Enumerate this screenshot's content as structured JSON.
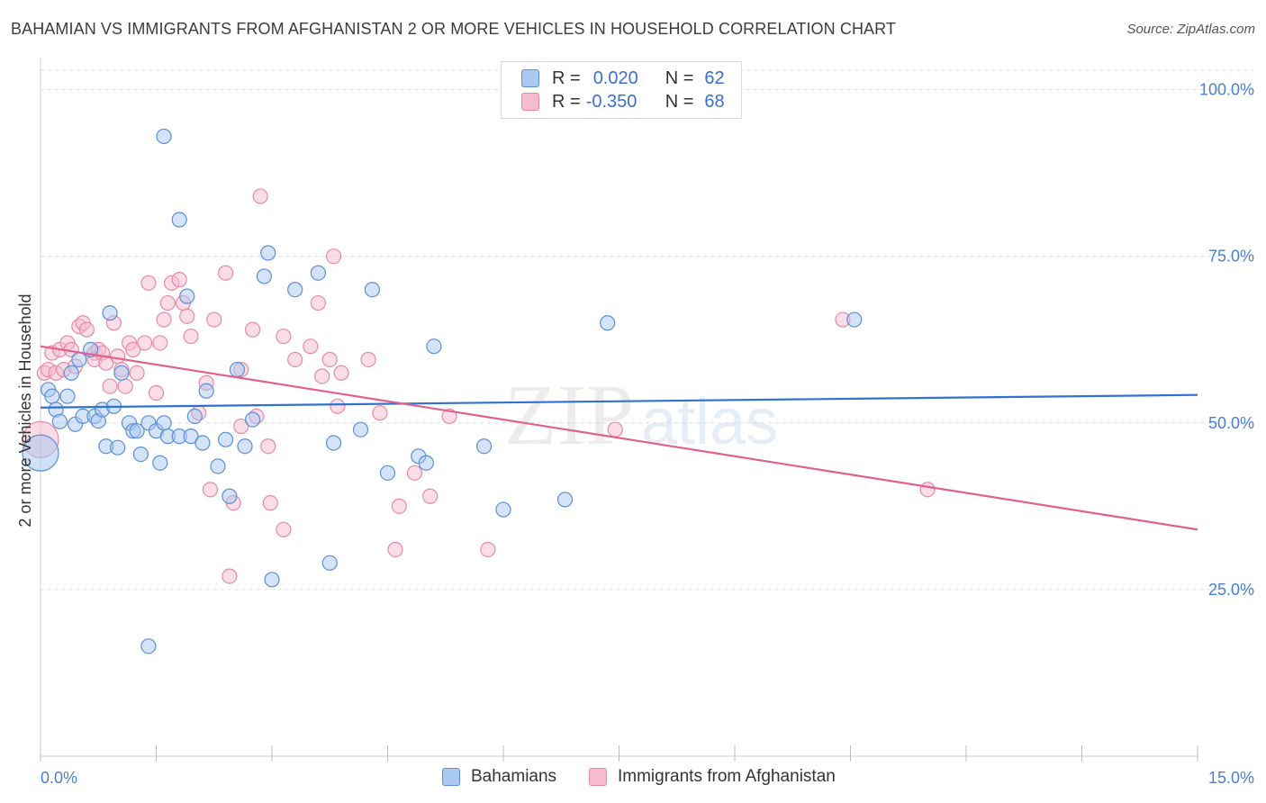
{
  "header": {
    "title": "BAHAMIAN VS IMMIGRANTS FROM AFGHANISTAN 2 OR MORE VEHICLES IN HOUSEHOLD CORRELATION CHART",
    "source": "Source: ZipAtlas.com"
  },
  "legend": {
    "row1": {
      "r_label": "R =",
      "r_value": "0.020",
      "n_label": "N =",
      "n_value": "62"
    },
    "row2": {
      "r_label": "R =",
      "r_value": "-0.350",
      "n_label": "N =",
      "n_value": "68"
    }
  },
  "bottom_legend": {
    "series1": "Bahamians",
    "series2": "Immigrants from Afghanistan"
  },
  "watermark": {
    "zip": "ZIP",
    "atlas": "atlas"
  },
  "colors": {
    "blue_fill": "#aac8f0",
    "blue_stroke": "#5b8fd6",
    "blue_line": "#2f72d0",
    "pink_fill": "#f6bccd",
    "pink_stroke": "#e48aa8",
    "pink_line": "#e0608e",
    "tick_text": "#4a7fd1",
    "grid": "#dcdcdc"
  },
  "chart_data": {
    "type": "scatter",
    "title": "BAHAMIAN VS IMMIGRANTS FROM AFGHANISTAN 2 OR MORE VEHICLES IN HOUSEHOLD CORRELATION CHART",
    "xlabel": "",
    "ylabel": "2 or more Vehicles in Household",
    "xlim": [
      0,
      15
    ],
    "ylim": [
      0,
      104
    ],
    "x_tick_labels": [
      "0.0%",
      "15.0%"
    ],
    "y_ticks": [
      25,
      50,
      75,
      100
    ],
    "y_tick_labels": [
      "25.0%",
      "50.0%",
      "75.0%",
      "100.0%"
    ],
    "grid": true,
    "legend_position": "top-center",
    "series": [
      {
        "name": "Bahamians",
        "color": "#5b8fd6",
        "r": 0.02,
        "n": 62,
        "trend": {
          "x": [
            0,
            15
          ],
          "y": [
            52.3,
            54.2
          ]
        },
        "points": [
          [
            0.0,
            45.5
          ],
          [
            0.1,
            55.0
          ],
          [
            0.15,
            54.0
          ],
          [
            0.2,
            52.0
          ],
          [
            0.25,
            50.2
          ],
          [
            0.35,
            54.0
          ],
          [
            0.4,
            57.5
          ],
          [
            0.45,
            49.8
          ],
          [
            0.5,
            59.5
          ],
          [
            0.55,
            51.0
          ],
          [
            0.65,
            61.0
          ],
          [
            0.7,
            51.0
          ],
          [
            0.75,
            50.3
          ],
          [
            0.8,
            52.0
          ],
          [
            0.85,
            46.5
          ],
          [
            0.9,
            66.5
          ],
          [
            0.95,
            52.5
          ],
          [
            1.0,
            46.3
          ],
          [
            1.05,
            57.5
          ],
          [
            1.15,
            50.0
          ],
          [
            1.2,
            48.8
          ],
          [
            1.25,
            48.8
          ],
          [
            1.3,
            45.3
          ],
          [
            1.4,
            16.5
          ],
          [
            1.4,
            50.0
          ],
          [
            1.5,
            48.8
          ],
          [
            1.55,
            44.0
          ],
          [
            1.6,
            50.0
          ],
          [
            1.6,
            93.0
          ],
          [
            1.65,
            48.0
          ],
          [
            1.8,
            48.0
          ],
          [
            1.8,
            80.5
          ],
          [
            1.9,
            69.0
          ],
          [
            1.95,
            48.0
          ],
          [
            2.0,
            51.0
          ],
          [
            2.1,
            47.0
          ],
          [
            2.15,
            54.8
          ],
          [
            2.3,
            43.5
          ],
          [
            2.4,
            47.5
          ],
          [
            2.45,
            39.0
          ],
          [
            2.55,
            58.0
          ],
          [
            2.65,
            46.5
          ],
          [
            2.75,
            50.5
          ],
          [
            2.9,
            72.0
          ],
          [
            2.95,
            75.5
          ],
          [
            3.0,
            26.5
          ],
          [
            3.3,
            70.0
          ],
          [
            3.6,
            72.5
          ],
          [
            3.75,
            29.0
          ],
          [
            3.8,
            47.0
          ],
          [
            4.15,
            49.0
          ],
          [
            4.3,
            70.0
          ],
          [
            4.5,
            42.5
          ],
          [
            4.9,
            45.0
          ],
          [
            5.0,
            44.0
          ],
          [
            5.1,
            61.5
          ],
          [
            5.75,
            46.5
          ],
          [
            6.0,
            37.0
          ],
          [
            6.8,
            38.5
          ],
          [
            7.35,
            65.0
          ],
          [
            10.55,
            65.5
          ]
        ]
      },
      {
        "name": "Immigrants from Afghanistan",
        "color": "#e48aa8",
        "r": -0.35,
        "n": 68,
        "trend": {
          "x": [
            0,
            15
          ],
          "y": [
            61.5,
            34.0
          ]
        },
        "points": [
          [
            0.0,
            47.5
          ],
          [
            0.05,
            57.5
          ],
          [
            0.1,
            58.0
          ],
          [
            0.15,
            60.5
          ],
          [
            0.2,
            57.5
          ],
          [
            0.25,
            61.0
          ],
          [
            0.3,
            58.0
          ],
          [
            0.35,
            62.0
          ],
          [
            0.4,
            61.0
          ],
          [
            0.45,
            58.5
          ],
          [
            0.5,
            64.5
          ],
          [
            0.55,
            65.0
          ],
          [
            0.6,
            64.0
          ],
          [
            0.7,
            60.5
          ],
          [
            0.7,
            59.5
          ],
          [
            0.75,
            61.0
          ],
          [
            0.8,
            60.5
          ],
          [
            0.85,
            59.0
          ],
          [
            0.9,
            55.5
          ],
          [
            0.95,
            65.0
          ],
          [
            1.0,
            60.0
          ],
          [
            1.05,
            58.0
          ],
          [
            1.1,
            55.5
          ],
          [
            1.15,
            62.0
          ],
          [
            1.2,
            61.0
          ],
          [
            1.25,
            57.5
          ],
          [
            1.35,
            62.0
          ],
          [
            1.4,
            71.0
          ],
          [
            1.5,
            54.5
          ],
          [
            1.55,
            62.0
          ],
          [
            1.6,
            65.5
          ],
          [
            1.65,
            68.0
          ],
          [
            1.7,
            71.0
          ],
          [
            1.8,
            71.5
          ],
          [
            1.85,
            68.0
          ],
          [
            1.9,
            66.0
          ],
          [
            1.95,
            63.0
          ],
          [
            2.05,
            51.5
          ],
          [
            2.15,
            56.0
          ],
          [
            2.2,
            40.0
          ],
          [
            2.25,
            65.5
          ],
          [
            2.4,
            72.5
          ],
          [
            2.45,
            27.0
          ],
          [
            2.5,
            38.0
          ],
          [
            2.6,
            58.0
          ],
          [
            2.6,
            49.5
          ],
          [
            2.75,
            64.0
          ],
          [
            2.8,
            51.0
          ],
          [
            2.85,
            84.0
          ],
          [
            2.95,
            46.5
          ],
          [
            2.98,
            38.0
          ],
          [
            3.15,
            34.0
          ],
          [
            3.15,
            63.0
          ],
          [
            3.3,
            59.5
          ],
          [
            3.5,
            61.5
          ],
          [
            3.6,
            68.0
          ],
          [
            3.65,
            57.0
          ],
          [
            3.75,
            59.5
          ],
          [
            3.8,
            75.0
          ],
          [
            3.85,
            52.5
          ],
          [
            3.9,
            57.5
          ],
          [
            4.25,
            59.5
          ],
          [
            4.4,
            51.5
          ],
          [
            4.6,
            31.0
          ],
          [
            4.65,
            37.5
          ],
          [
            4.85,
            42.5
          ],
          [
            5.05,
            39.0
          ],
          [
            5.3,
            51.0
          ],
          [
            5.8,
            31.0
          ],
          [
            7.45,
            49.0
          ],
          [
            10.4,
            65.5
          ],
          [
            11.5,
            40.0
          ]
        ]
      }
    ]
  }
}
